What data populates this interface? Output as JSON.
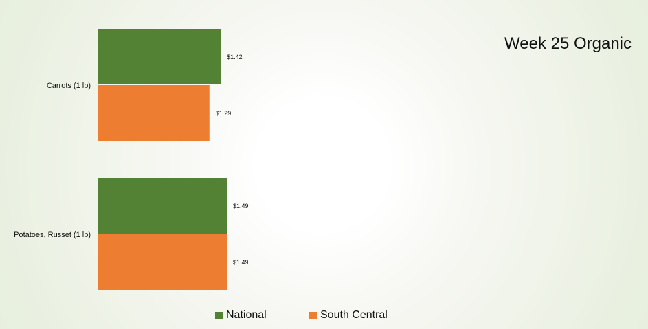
{
  "chart_data": {
    "type": "bar",
    "orientation": "horizontal",
    "title": "Week 25 Organic",
    "categories": [
      "Carrots (1 lb)",
      "Potatoes, Russet (1 lb)"
    ],
    "series": [
      {
        "name": "National",
        "color": "#548235",
        "values": [
          1.42,
          1.49
        ],
        "labels": [
          "$1.42",
          "$1.49"
        ]
      },
      {
        "name": "South Central",
        "color": "#ed7d31",
        "values": [
          1.29,
          1.49
        ],
        "labels": [
          "$1.29",
          "$1.49"
        ]
      }
    ],
    "xlim": [
      0,
      1.49
    ],
    "grid": false,
    "legend_position": "bottom"
  }
}
